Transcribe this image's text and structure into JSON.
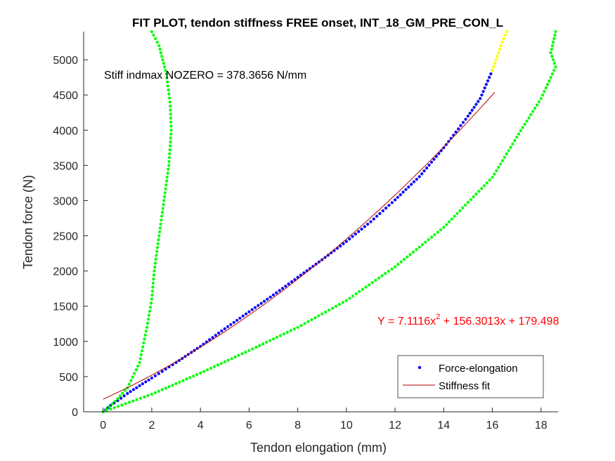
{
  "chart_data": {
    "type": "scatter",
    "title": "FIT PLOT, tendon stiffness FREE onset, INT_18_GM_PRE_CON_L",
    "xlabel": "Tendon elongation (mm)",
    "ylabel": "Tendon force (N)",
    "xlim": [
      -0.8,
      18.7
    ],
    "ylim": [
      0,
      5400
    ],
    "xticks": [
      "0",
      "2",
      "4",
      "6",
      "8",
      "10",
      "12",
      "14",
      "16",
      "18"
    ],
    "yticks": [
      "0",
      "500",
      "1000",
      "1500",
      "2000",
      "2500",
      "3000",
      "3500",
      "4000",
      "4500",
      "5000"
    ],
    "grid": false,
    "legend_position": "bottom-right",
    "legend": [
      {
        "label": "Force-elongation",
        "color": "#0000ff",
        "marker": "dot"
      },
      {
        "label": "Stiffness fit",
        "color": "#b30000",
        "marker": "line"
      }
    ],
    "annotations": {
      "stiffness": "Stiff indmax NOZERO = 378.3656 N/mm",
      "equation_prefix": "Y = 7.1116x",
      "equation_sup": "2",
      "equation_suffix": " + 156.3013x + 179.498"
    },
    "fit": {
      "name": "Stiffness fit",
      "color": "#b30000",
      "a": 7.1116,
      "b": 156.3013,
      "c": 179.498,
      "x_range": [
        0,
        16.1
      ]
    },
    "series": [
      {
        "name": "Force-elongation",
        "color": "#0000ff",
        "points": [
          [
            0,
            0
          ],
          [
            0.3,
            90
          ],
          [
            0.6,
            160
          ],
          [
            1,
            260
          ],
          [
            1.5,
            370
          ],
          [
            2,
            480
          ],
          [
            3,
            700
          ],
          [
            4,
            930
          ],
          [
            5,
            1180
          ],
          [
            6,
            1420
          ],
          [
            7,
            1660
          ],
          [
            8,
            1910
          ],
          [
            9,
            2160
          ],
          [
            10,
            2420
          ],
          [
            11,
            2700
          ],
          [
            12,
            3010
          ],
          [
            13,
            3340
          ],
          [
            14,
            3750
          ],
          [
            15,
            4200
          ],
          [
            15.5,
            4450
          ],
          [
            16,
            4850
          ]
        ]
      },
      {
        "color": "#ffff00",
        "points": [
          [
            16,
            4850
          ],
          [
            16.2,
            5050
          ],
          [
            16.4,
            5250
          ],
          [
            16.6,
            5400
          ]
        ]
      },
      {
        "color": "#00ff00",
        "points": [
          [
            0,
            0
          ],
          [
            0.5,
            150
          ],
          [
            1,
            340
          ],
          [
            1.5,
            700
          ],
          [
            1.8,
            1200
          ],
          [
            2,
            1600
          ],
          [
            2.1,
            2000
          ],
          [
            2.3,
            2500
          ],
          [
            2.5,
            3000
          ],
          [
            2.7,
            3500
          ],
          [
            2.8,
            4000
          ],
          [
            2.75,
            4400
          ],
          [
            2.6,
            4800
          ],
          [
            2.3,
            5200
          ],
          [
            2.0,
            5400
          ]
        ]
      },
      {
        "color": "#00ff00",
        "points": [
          [
            0,
            0
          ],
          [
            2,
            250
          ],
          [
            4,
            550
          ],
          [
            6,
            870
          ],
          [
            8,
            1200
          ],
          [
            10,
            1580
          ],
          [
            12,
            2060
          ],
          [
            14,
            2620
          ],
          [
            16,
            3330
          ],
          [
            17,
            3900
          ],
          [
            18,
            4450
          ],
          [
            18.6,
            4900
          ],
          [
            18.4,
            5100
          ],
          [
            18.6,
            5400
          ]
        ]
      }
    ]
  }
}
